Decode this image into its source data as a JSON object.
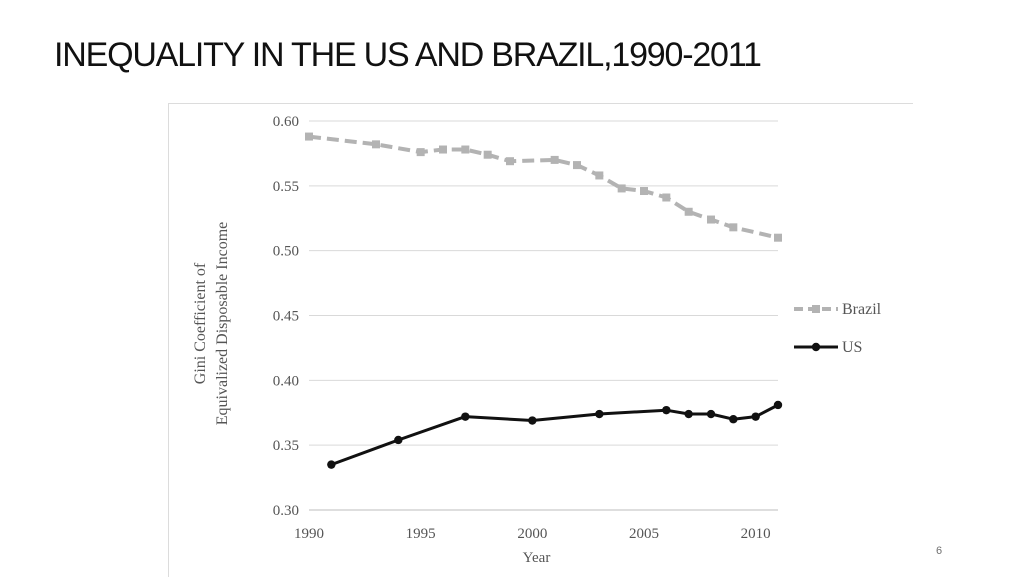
{
  "slide": {
    "title": "INEQUALITY IN THE US AND BRAZIL,1990-2011",
    "page_number": "6"
  },
  "colors": {
    "brazil": "#b3b3b3",
    "us": "#111111",
    "grid": "#d9d9d9",
    "text": "#555555"
  },
  "chart_data": {
    "type": "line",
    "title": "",
    "xlabel": "Year",
    "ylabel_lines": [
      "Gini Coefficient of",
      "Equivalized Disposable Income"
    ],
    "xlim": [
      1990,
      2011
    ],
    "ylim": [
      0.3,
      0.6
    ],
    "xticks": [
      1990,
      1995,
      2000,
      2005,
      2010
    ],
    "xtick_labels": [
      "1990",
      "1995",
      "2000",
      "2005",
      "2010"
    ],
    "yticks": [
      0.3,
      0.35,
      0.4,
      0.45,
      0.5,
      0.55,
      0.6
    ],
    "ytick_labels": [
      "0.30",
      "0.35",
      "0.40",
      "0.45",
      "0.50",
      "0.55",
      "0.60"
    ],
    "grid": true,
    "legend_position": "right",
    "series": [
      {
        "name": "Brazil",
        "style": "dashed-square",
        "x": [
          1990,
          1993,
          1995,
          1996,
          1997,
          1998,
          1999,
          2001,
          2002,
          2003,
          2004,
          2005,
          2006,
          2007,
          2008,
          2009,
          2011
        ],
        "y": [
          0.588,
          0.582,
          0.576,
          0.578,
          0.578,
          0.574,
          0.569,
          0.57,
          0.566,
          0.558,
          0.548,
          0.546,
          0.541,
          0.53,
          0.524,
          0.518,
          0.51
        ]
      },
      {
        "name": "US",
        "style": "solid-circle",
        "x": [
          1991,
          1994,
          1997,
          2000,
          2003,
          2006,
          2007,
          2008,
          2009,
          2010,
          2011
        ],
        "y": [
          0.335,
          0.354,
          0.372,
          0.369,
          0.374,
          0.377,
          0.374,
          0.374,
          0.37,
          0.372,
          0.381
        ]
      }
    ]
  }
}
